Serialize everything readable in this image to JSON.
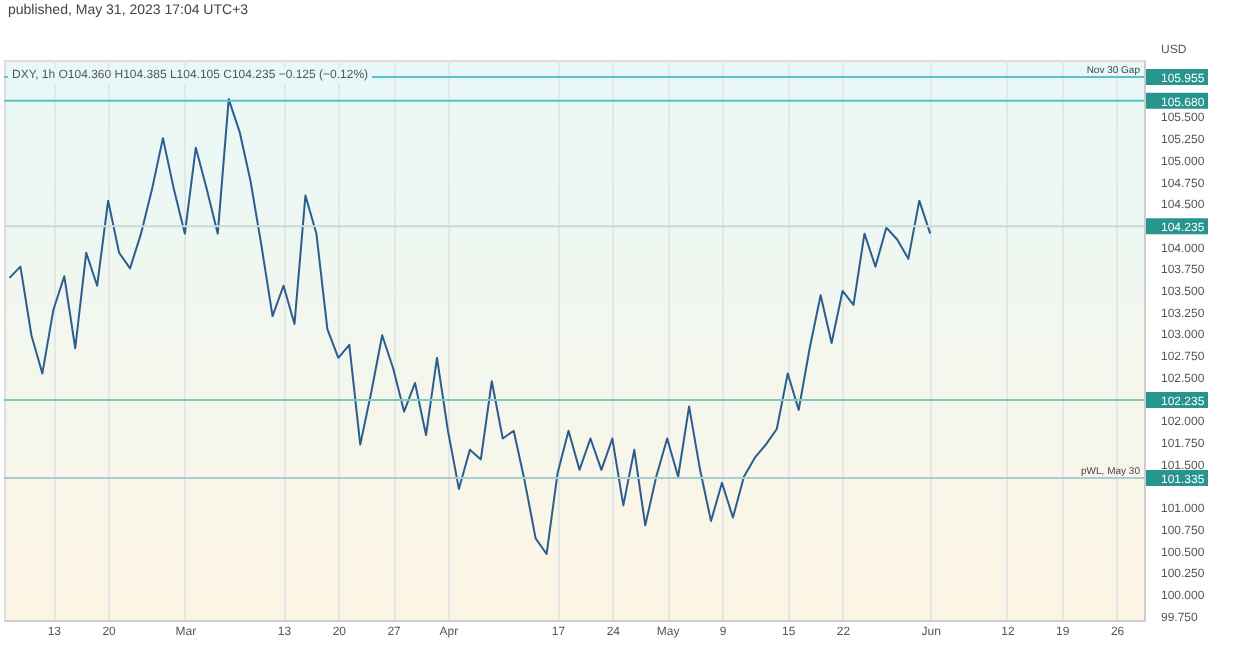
{
  "chart_data": {
    "type": "line",
    "title": "DXY, 1h O104.360 H104.385 L104.105 C104.235 −0.125 (−0.12%)",
    "subtitle": "published, May 31, 2023 17:04 UTC+3",
    "ylabel": "USD",
    "categories": [
      null,
      null,
      null,
      null,
      "13",
      null,
      null,
      null,
      null,
      "20",
      null,
      null,
      null,
      null,
      null,
      null,
      "Mar",
      null,
      null,
      null,
      null,
      null,
      null,
      null,
      null,
      "13",
      null,
      null,
      null,
      null,
      "20",
      null,
      null,
      null,
      null,
      "27",
      null,
      null,
      null,
      null,
      "Apr",
      null,
      null,
      null,
      null,
      null,
      null,
      null,
      null,
      null,
      "17",
      null,
      null,
      null,
      null,
      "24",
      null,
      null,
      null,
      null,
      "May",
      null,
      null,
      null,
      null,
      "9",
      null,
      null,
      null,
      null,
      null,
      "15",
      null,
      null,
      null,
      null,
      "22",
      null,
      null,
      null,
      null,
      null,
      null,
      null,
      "Jun",
      null,
      null,
      null,
      null,
      null,
      null,
      "12",
      null,
      null,
      null,
      null,
      "19",
      null,
      null,
      null,
      null,
      "26",
      null,
      null
    ],
    "series": [
      {
        "color": "#2b5d8f",
        "values": [
          103.64,
          103.77,
          102.98,
          102.54,
          103.27,
          103.66,
          102.83,
          103.93,
          103.55,
          104.53,
          103.93,
          103.75,
          104.15,
          104.66,
          105.25,
          104.66,
          104.15,
          105.14,
          104.66,
          104.15,
          105.7,
          105.32,
          104.75,
          104.0,
          103.2,
          103.55,
          103.11,
          104.59,
          104.15,
          103.05,
          102.72,
          102.87,
          101.72,
          102.32,
          102.98,
          102.6,
          102.1,
          102.43,
          101.83,
          102.72,
          101.88,
          101.21,
          101.66,
          101.55,
          102.45,
          101.79,
          101.88,
          101.3,
          100.64,
          100.46,
          101.39,
          101.88,
          101.43,
          101.79,
          101.43,
          101.79,
          101.02,
          101.66,
          100.79,
          101.35,
          101.79,
          101.35,
          102.16,
          101.43,
          100.84,
          101.28,
          100.88,
          101.35,
          101.57,
          101.72,
          101.9,
          102.54,
          102.12,
          102.83,
          103.44,
          102.89,
          103.49,
          103.33,
          104.15,
          103.77,
          104.22,
          104.08,
          103.86,
          104.53,
          104.15,
          null,
          null,
          null,
          null,
          null,
          null,
          null,
          null,
          null,
          null,
          null,
          null,
          null,
          null,
          null,
          null,
          null,
          null,
          null
        ]
      }
    ],
    "marker": "none",
    "line_style": "solid",
    "grid": "x",
    "ylim": [
      99.7,
      106.15
    ],
    "yticks": [
      {
        "value": 99.75,
        "label": "99.750"
      },
      {
        "value": 100,
        "label": "100.000"
      },
      {
        "value": 100.25,
        "label": "100.250"
      },
      {
        "value": 100.5,
        "label": "100.500"
      },
      {
        "value": 100.75,
        "label": "100.750"
      },
      {
        "value": 101,
        "label": "101.000"
      },
      {
        "value": 101.5,
        "label": "101.500"
      },
      {
        "value": 101.75,
        "label": "101.750"
      },
      {
        "value": 102,
        "label": "102.000"
      },
      {
        "value": 102.5,
        "label": "102.500"
      },
      {
        "value": 102.75,
        "label": "102.750"
      },
      {
        "value": 103,
        "label": "103.000"
      },
      {
        "value": 103.25,
        "label": "103.250"
      },
      {
        "value": 103.5,
        "label": "103.500"
      },
      {
        "value": 103.75,
        "label": "103.750"
      },
      {
        "value": 104,
        "label": "104.000"
      },
      {
        "value": 104.5,
        "label": "104.500"
      },
      {
        "value": 104.75,
        "label": "104.750"
      },
      {
        "value": 105,
        "label": "105.000"
      },
      {
        "value": 105.25,
        "label": "105.250"
      },
      {
        "value": 105.5,
        "label": "105.500"
      },
      {
        "value": 105.68,
        "label": "105.680"
      },
      {
        "value": 105.955,
        "label": "105.955"
      },
      {
        "value": 104.235,
        "label": "104.235"
      },
      {
        "value": 102.235,
        "label": "102.235"
      },
      {
        "value": 101.335,
        "label": "101.335"
      }
    ],
    "ref_lines": [
      {
        "axis": "y",
        "value": 105.955,
        "label": "Nov 30 Gap",
        "color": "#5cc4c4"
      },
      {
        "axis": "y",
        "value": 105.68,
        "color": "#5cc4c4"
      },
      {
        "axis": "y",
        "value": 104.235,
        "color": "#c9d9dc"
      },
      {
        "axis": "y",
        "value": 102.235,
        "color": "#7ec8c4"
      },
      {
        "axis": "y",
        "value": 101.335,
        "label": "pWL, May 30",
        "color": "#a8ccd0"
      }
    ]
  }
}
